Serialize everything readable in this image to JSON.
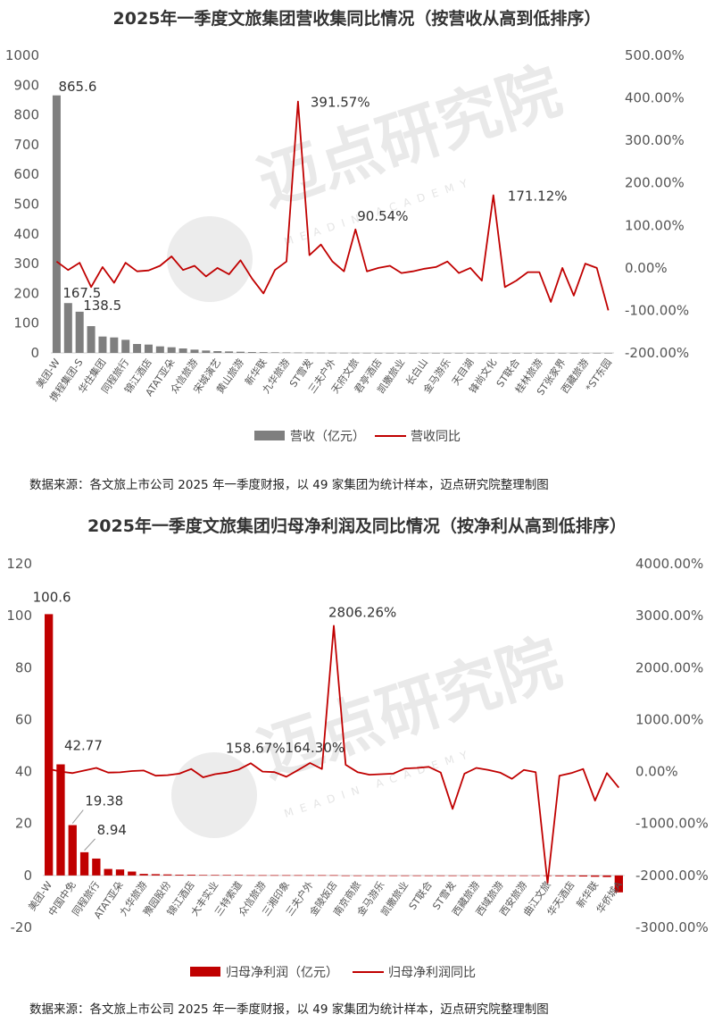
{
  "chart_data": [
    {
      "type": "bar+line",
      "title": "2025年一季度文旅集团营收集同比情况（按营收从高到低排序）",
      "categories": [
        "美团-W",
        "携程集团-S",
        "华住集团",
        "同程旅行",
        "锦江酒店",
        "ATAT亚朵",
        "众信旅游",
        "宋城演艺",
        "黄山旅游",
        "新华联",
        "九华旅游",
        "ST雪发",
        "三夫户外",
        "天府文旅",
        "君亭酒店",
        "凯撒旅业",
        "长白山",
        "金马游乐",
        "天目湖",
        "锋尚文化",
        "ST联合",
        "桂林旅游",
        "ST张家界",
        "西藏旅游",
        "*ST东园"
      ],
      "tick_labels_shown": [
        "美团-W",
        "携程集团-S",
        "华住集团",
        "同程旅行",
        "锦江酒店",
        "ATAT亚朵",
        "众信旅游",
        "宋城演艺",
        "黄山旅游",
        "新华联",
        "九华旅游",
        "ST雪发",
        "三夫户外",
        "天府文旅",
        "君亭酒店",
        "凯撒旅业",
        "长白山",
        "金马游乐",
        "天目湖",
        "锋尚文化",
        "ST联合",
        "桂林旅游",
        "ST张家界",
        "西藏旅游",
        "*ST东园"
      ],
      "bar_series": {
        "name": "营收（亿元）",
        "color": "#7f7f7f"
      },
      "bar_values": [
        865.6,
        167.5,
        138.5,
        90,
        55,
        52,
        44,
        30,
        28,
        22,
        19,
        15,
        11,
        8,
        6,
        5,
        4,
        3,
        2.5,
        2,
        1.5,
        1.2,
        1,
        0.8,
        0.6,
        0.5,
        0.4,
        0.3,
        0.2,
        0.2,
        0.1,
        0.1,
        0.1,
        0.1,
        0.1,
        0.1,
        0.1,
        0.1,
        0.1,
        0.1,
        0.1,
        0.1,
        0.1,
        0.1,
        0.1,
        0.1,
        0.1,
        0.1,
        0.1
      ],
      "line_series": {
        "name": "营收同比",
        "color": "#c00000"
      },
      "line_values": [
        15,
        -5,
        12,
        -45,
        2,
        -35,
        12,
        -8,
        -6,
        5,
        27,
        -5,
        5,
        -20,
        0,
        -15,
        18,
        -25,
        -60,
        -5,
        15,
        391.57,
        30,
        55,
        15,
        -8,
        90.54,
        -8,
        0,
        5,
        -12,
        -8,
        -2,
        2,
        15,
        -12,
        0,
        -30,
        171.12,
        -45,
        -30,
        -10,
        -10,
        -80,
        0,
        -65,
        10,
        0,
        -100
      ],
      "annotations": [
        "865.6",
        "167.5",
        "138.5",
        "391.57%",
        "90.54%",
        "171.12%"
      ],
      "left_axis": {
        "ylim": [
          0,
          1000
        ],
        "ticks": [
          "0",
          "100",
          "200",
          "300",
          "400",
          "500",
          "600",
          "700",
          "800",
          "900",
          "1000"
        ]
      },
      "right_axis": {
        "ylim": [
          -200,
          500
        ],
        "ticks": [
          "-200.00%",
          "-100.00%",
          "0.00%",
          "100.00%",
          "200.00%",
          "300.00%",
          "400.00%",
          "500.00%"
        ]
      },
      "legend": "bottom",
      "grid": false
    },
    {
      "type": "bar+line",
      "title": "2025年一季度文旅集团归母净利润及同比情况（按净利从高到低排序）",
      "categories": [
        "美团-W",
        "中国中免",
        "同程旅行",
        "ATAT亚朵",
        "九华旅游",
        "豫园股份",
        "锦江酒店",
        "大丰实业",
        "三特索道",
        "众信旅游",
        "三湘印象",
        "三夫户外",
        "金陵饭店",
        "南京商旅",
        "金马游乐",
        "凯撒旅业",
        "ST联合",
        "ST雪发",
        "西藏旅游",
        "西域旅游",
        "西安旅游",
        "曲江文旅",
        "华天酒店",
        "新华联",
        "华侨城A"
      ],
      "tick_labels_shown": [
        "美团-W",
        "中国中免",
        "同程旅行",
        "ATAT亚朵",
        "九华旅游",
        "豫园股份",
        "锦江酒店",
        "大丰实业",
        "三特索道",
        "众信旅游",
        "三湘印象",
        "三夫户外",
        "金陵饭店",
        "南京商旅",
        "金马游乐",
        "凯撒旅业",
        "ST联合",
        "ST雪发",
        "西藏旅游",
        "西域旅游",
        "西安旅游",
        "曲江文旅",
        "华天酒店",
        "新华联",
        "华侨城A"
      ],
      "bar_series": {
        "name": "归母净利润（亿元）",
        "color": "#c00000"
      },
      "bar_values": [
        100.6,
        42.77,
        19.38,
        8.94,
        6.5,
        2.5,
        2.3,
        1.5,
        0.6,
        0.5,
        0.4,
        0.3,
        0.3,
        0.2,
        0.2,
        0.2,
        0.2,
        0.1,
        0.1,
        0.1,
        0.1,
        0.1,
        0.1,
        0.1,
        0.1,
        0,
        0,
        0,
        0,
        0,
        0,
        0,
        0,
        0,
        0,
        0,
        0,
        0,
        -0.1,
        -0.1,
        -0.1,
        -0.2,
        -0.2,
        -0.3,
        -0.3,
        -0.4,
        -0.5,
        -0.6,
        -6.5
      ],
      "line_values": [
        50,
        0,
        -30,
        20,
        70,
        -20,
        -15,
        10,
        20,
        -80,
        -70,
        -40,
        50,
        -110,
        -50,
        -20,
        40,
        158.67,
        0,
        -10,
        -100,
        30,
        164.3,
        50,
        2806.26,
        130,
        -10,
        -60,
        -50,
        -40,
        60,
        70,
        90,
        -20,
        -720,
        -40,
        70,
        30,
        -20,
        -140,
        30,
        -10,
        -2150,
        -80,
        -30,
        50,
        -560,
        -30,
        -310
      ],
      "line_series": {
        "name": "归母净利润同比",
        "color": "#c00000"
      },
      "annotations": [
        "100.6",
        "42.77",
        "19.38",
        "8.94",
        "158.67%",
        "164.30%",
        "2806.26%"
      ],
      "left_axis": {
        "ylim": [
          -20,
          120
        ],
        "ticks": [
          "-20",
          "0",
          "20",
          "40",
          "60",
          "80",
          "100",
          "120"
        ]
      },
      "right_axis": {
        "ylim": [
          -3000,
          4000
        ],
        "ticks": [
          "-3000.00%",
          "-2000.00%",
          "-1000.00%",
          "0.00%",
          "1000.00%",
          "2000.00%",
          "3000.00%",
          "4000.00%"
        ]
      },
      "legend": "bottom",
      "grid": false
    }
  ],
  "source_text_1": "数据来源：各文旅上市公司 2025 年一季度财报，以 49 家集团为统计样本，迈点研究院整理制图",
  "source_text_2": "数据来源：各文旅上市公司 2025 年一季度财报，以 49 家集团为统计样本，迈点研究院整理制图",
  "watermark": {
    "cn": "迈点研究院",
    "en": "MEADIN ACADEMY"
  }
}
